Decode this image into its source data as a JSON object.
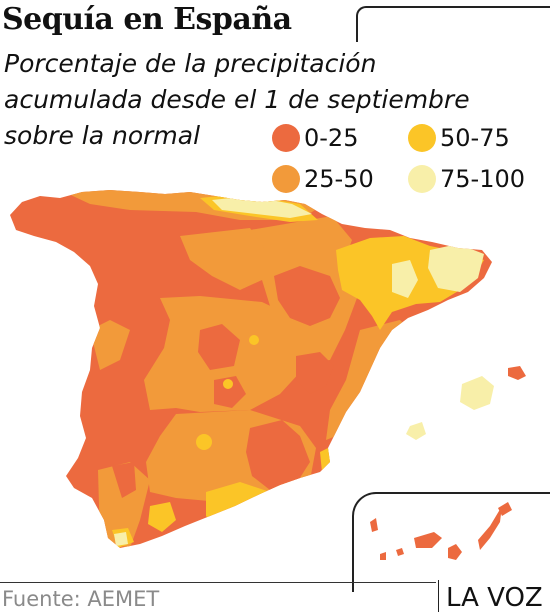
{
  "header": {
    "title": "Sequía en España",
    "subtitle_lines": [
      "Porcentaje de la precipitación",
      "acumulada desde el 1 de septiembre",
      "sobre la normal"
    ]
  },
  "legend": {
    "items": [
      {
        "label": "0-25",
        "color": "#ec6a3f"
      },
      {
        "label": "25-50",
        "color": "#f29a3a"
      },
      {
        "label": "50-75",
        "color": "#fbc527"
      },
      {
        "label": "75-100",
        "color": "#f8efa9"
      }
    ]
  },
  "colors": {
    "land_base": "#ec6a3f",
    "class_25_50": "#f29a3a",
    "class_50_75": "#fbc527",
    "class_75_100": "#f8efa9",
    "rules": "#222222"
  },
  "map": {
    "regions": [
      "peninsula",
      "balearic-islands",
      "canary-islands"
    ]
  },
  "footer": {
    "source": "Fuente: AEMET",
    "brand": "LA VOZ"
  }
}
